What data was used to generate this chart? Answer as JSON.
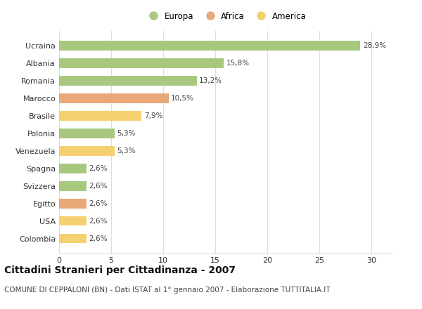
{
  "countries": [
    "Ucraina",
    "Albania",
    "Romania",
    "Marocco",
    "Brasile",
    "Polonia",
    "Venezuela",
    "Spagna",
    "Svizzera",
    "Egitto",
    "USA",
    "Colombia"
  ],
  "values": [
    28.9,
    15.8,
    13.2,
    10.5,
    7.9,
    5.3,
    5.3,
    2.6,
    2.6,
    2.6,
    2.6,
    2.6
  ],
  "labels": [
    "28,9%",
    "15,8%",
    "13,2%",
    "10,5%",
    "7,9%",
    "5,3%",
    "5,3%",
    "2,6%",
    "2,6%",
    "2,6%",
    "2,6%",
    "2,6%"
  ],
  "continents": [
    "Europa",
    "Europa",
    "Europa",
    "Africa",
    "America",
    "Europa",
    "America",
    "Europa",
    "Europa",
    "Africa",
    "America",
    "America"
  ],
  "colors": {
    "Europa": "#a8c880",
    "Africa": "#e8a878",
    "America": "#f5d070"
  },
  "xlim": [
    0,
    32
  ],
  "xticks": [
    0,
    5,
    10,
    15,
    20,
    25,
    30
  ],
  "title": "Cittadini Stranieri per Cittadinanza - 2007",
  "subtitle": "COMUNE DI CEPPALONI (BN) - Dati ISTAT al 1° gennaio 2007 - Elaborazione TUTTITALIA.IT",
  "background_color": "#ffffff",
  "plot_bg_color": "#ffffff",
  "grid_color": "#dddddd",
  "bar_height": 0.55,
  "title_fontsize": 10,
  "subtitle_fontsize": 7.5,
  "label_fontsize": 7.5,
  "tick_fontsize": 8,
  "legend_fontsize": 8.5
}
